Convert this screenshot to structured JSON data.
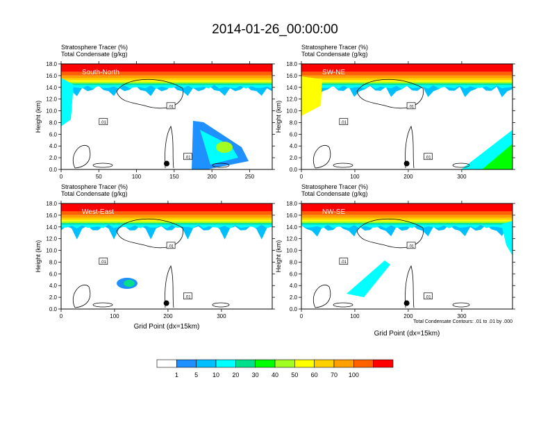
{
  "title": "2014-01-26_00:00:00",
  "chart_data": [
    {
      "type": "heatmap",
      "panel_label": "South-North",
      "variable_lines": [
        "Stratosphere Tracer   (%)",
        "Total Condensate   (g/kg)"
      ],
      "xlabel": "",
      "ylabel": "Height (km)",
      "xlim": [
        0,
        280
      ],
      "ylim": [
        0,
        18
      ],
      "xticks": [
        0,
        50,
        100,
        150,
        200,
        250
      ],
      "yticks": [
        "0.0",
        "2.0",
        "4.0",
        "6.0",
        "8.0",
        "10.0",
        "12.0",
        "14.0",
        "16.0",
        "18.0"
      ],
      "contour_label": ".01",
      "marker_point": {
        "x": 140,
        "y": 1.0
      }
    },
    {
      "type": "heatmap",
      "panel_label": "SW-NE",
      "variable_lines": [
        "Stratosphere Tracer   (%)",
        "Total Condensate   (g/kg)"
      ],
      "xlabel": "",
      "ylabel": "Height (km)",
      "xlim": [
        0,
        395
      ],
      "ylim": [
        0,
        18
      ],
      "xticks": [
        0,
        100,
        200,
        300
      ],
      "yticks": [
        "0.0",
        "2.0",
        "4.0",
        "6.0",
        "8.0",
        "10.0",
        "12.0",
        "14.0",
        "16.0",
        "18.0"
      ],
      "contour_label": ".01",
      "marker_point": {
        "x": 197,
        "y": 1.0
      }
    },
    {
      "type": "heatmap",
      "panel_label": "West-East",
      "variable_lines": [
        "Stratosphere Tracer   (%)",
        "Total Condensate   (g/kg)"
      ],
      "xlabel": "Grid Point (dx=15km)",
      "ylabel": "Height (km)",
      "xlim": [
        0,
        395
      ],
      "ylim": [
        0,
        18
      ],
      "xticks": [
        0,
        100,
        200,
        300
      ],
      "yticks": [
        "0.0",
        "2.0",
        "4.0",
        "6.0",
        "8.0",
        "10.0",
        "12.0",
        "14.0",
        "16.0",
        "18.0"
      ],
      "contour_label": ".01",
      "marker_point": {
        "x": 197,
        "y": 1.0
      }
    },
    {
      "type": "heatmap",
      "panel_label": "NW-SE",
      "variable_lines": [
        "Stratosphere Tracer   (%)",
        "Total Condensate   (g/kg)"
      ],
      "xlabel": "Grid Point (dx=15km)",
      "ylabel": "Height (km)",
      "xlim": [
        0,
        395
      ],
      "ylim": [
        0,
        18
      ],
      "xticks": [
        0,
        100,
        200,
        300
      ],
      "yticks": [
        "0.0",
        "2.0",
        "4.0",
        "6.0",
        "8.0",
        "10.0",
        "12.0",
        "14.0",
        "16.0",
        "18.0"
      ],
      "contour_label": ".01",
      "marker_point": {
        "x": 197,
        "y": 1.0
      },
      "footnote": "Total Condensate Contours: .01 to .01 by .000"
    }
  ],
  "colorbar": {
    "labels": [
      "1",
      "5",
      "10",
      "20",
      "30",
      "40",
      "50",
      "60",
      "70",
      "100"
    ],
    "colors": [
      "#ffffff",
      "#1e90ff",
      "#00bfff",
      "#00ffff",
      "#00e08c",
      "#00ff00",
      "#a0ff20",
      "#ffff00",
      "#ffd000",
      "#ffa000",
      "#ff6000",
      "#ff0000"
    ]
  }
}
